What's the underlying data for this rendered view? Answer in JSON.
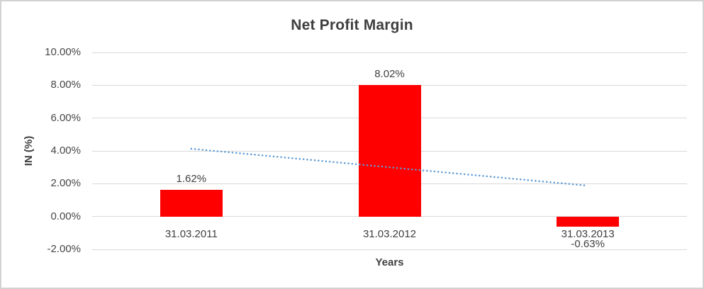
{
  "chart_data": {
    "type": "bar",
    "title": "Net Profit Margin",
    "xlabel": "Years",
    "ylabel": "IN (%)",
    "categories": [
      "31.03.2011",
      "31.03.2012",
      "31.03.2013"
    ],
    "values": [
      1.62,
      8.02,
      -0.63
    ],
    "data_labels": [
      "1.62%",
      "8.02%",
      "-0.63%"
    ],
    "y_ticks": [
      {
        "value": 10,
        "label": "10.00%"
      },
      {
        "value": 8,
        "label": "8.00%"
      },
      {
        "value": 6,
        "label": "6.00%"
      },
      {
        "value": 4,
        "label": "4.00%"
      },
      {
        "value": 2,
        "label": "2.00%"
      },
      {
        "value": 0,
        "label": "0.00%"
      },
      {
        "value": -2,
        "label": "-2.00%"
      }
    ],
    "ylim": [
      -2,
      10
    ],
    "grid": true,
    "legend": "none",
    "trendline": {
      "type": "linear",
      "style": "dotted",
      "values": [
        4.13,
        3.0,
        1.88
      ]
    },
    "colors": {
      "bar": "#ff0000",
      "trendline": "#5b9bd5",
      "gridline": "#d9d9d9",
      "text": "#404040",
      "frame_border": "#d2d2d2",
      "background": "#ffffff"
    }
  }
}
